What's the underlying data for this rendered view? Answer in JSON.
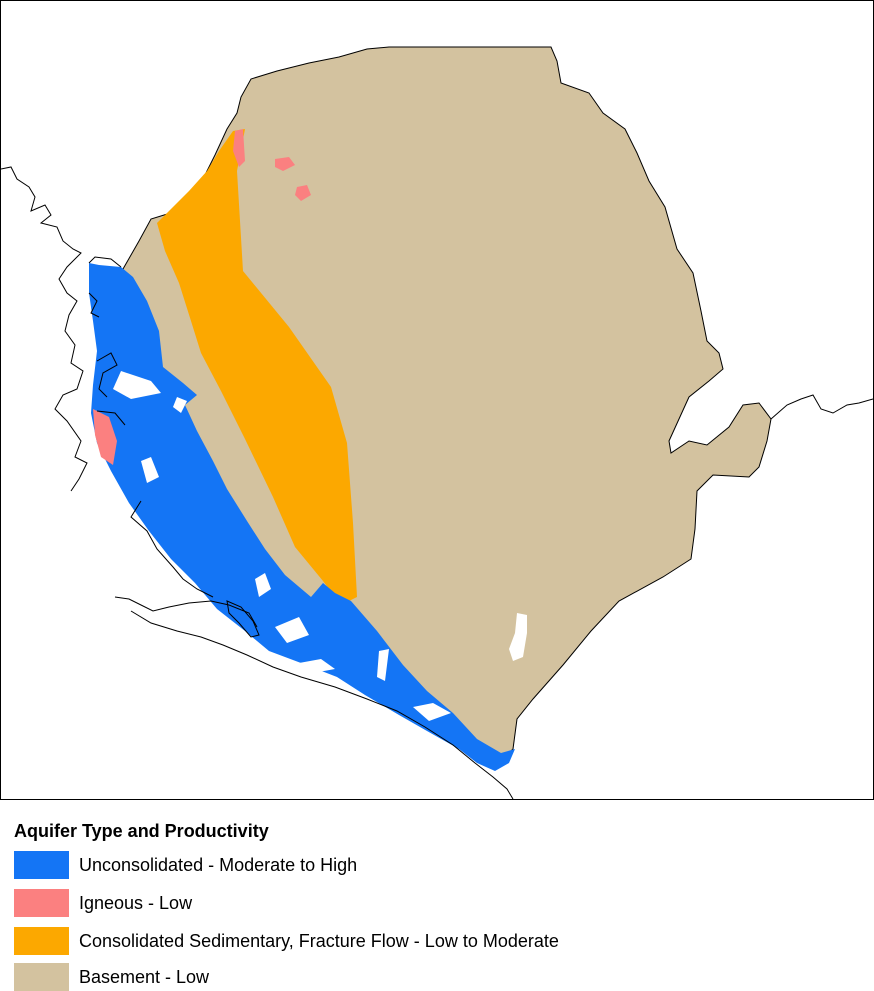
{
  "legend": {
    "title": "Aquifer Type and Productivity",
    "items": [
      {
        "label": "Unconsolidated - Moderate to High",
        "color": "#1475f5"
      },
      {
        "label": "Igneous - Low",
        "color": "#fb8080"
      },
      {
        "label": "Consolidated Sedimentary, Fracture Flow - Low to Moderate",
        "color": "#fca800"
      },
      {
        "label": "Basement - Low",
        "color": "#d3c29f"
      }
    ]
  },
  "colors": {
    "unconsolidated": "#1475f5",
    "igneous": "#fb8080",
    "consolidated": "#fca800",
    "basement": "#d3c29f",
    "water": "#ffffff",
    "outline": "#000000"
  }
}
